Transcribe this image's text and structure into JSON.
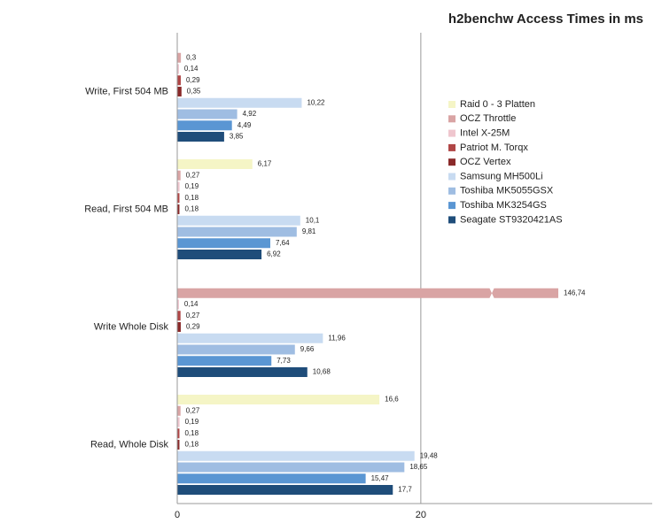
{
  "chart_data": {
    "type": "hbar",
    "title": "h2benchw Access Times in ms",
    "categories": [
      "Write, First 504 MB",
      "Read, First 504 MB",
      "Write Whole Disk",
      "Read, Whole Disk"
    ],
    "xlim": [
      0,
      39
    ],
    "xticks": [
      0,
      20
    ],
    "grid": true,
    "legend": "right",
    "series": [
      {
        "name": "Raid 0 - 3 Platten",
        "color": "#f5f5c6",
        "values": [
          null,
          6.17,
          null,
          16.6
        ],
        "value_labels": [
          null,
          "6,17",
          null,
          "16,6"
        ]
      },
      {
        "name": "OCZ Throttle",
        "color": "#d9a4a4",
        "values": [
          0.3,
          0.27,
          146.74,
          0.27
        ],
        "value_labels": [
          "0,3",
          "0,27",
          "146,74",
          "0,27"
        ]
      },
      {
        "name": "Intel X-25M",
        "color": "#efc6ce",
        "values": [
          0.14,
          0.19,
          0.14,
          0.19
        ],
        "value_labels": [
          "0,14",
          "0,19",
          "0,14",
          "0,19"
        ]
      },
      {
        "name": "Patriot M. Torqx",
        "color": "#b04646",
        "values": [
          0.29,
          0.18,
          0.27,
          0.18
        ],
        "value_labels": [
          "0,29",
          "0,18",
          "0,27",
          "0,18"
        ]
      },
      {
        "name": "OCZ Vertex",
        "color": "#8a2a2a",
        "values": [
          0.35,
          0.18,
          0.29,
          0.18
        ],
        "value_labels": [
          "0,35",
          "0,18",
          "0,29",
          "0,18"
        ]
      },
      {
        "name": "Samsung MH500Li",
        "color": "#c8dbf1",
        "values": [
          10.22,
          10.1,
          11.96,
          19.48
        ],
        "value_labels": [
          "10,22",
          "10,1",
          "11,96",
          "19,48"
        ]
      },
      {
        "name": "Toshiba MK5055GSX",
        "color": "#9fbde2",
        "values": [
          4.92,
          9.81,
          9.66,
          18.65
        ],
        "value_labels": [
          "4,92",
          "9,81",
          "9,66",
          "18,65"
        ]
      },
      {
        "name": "Toshiba MK3254GS",
        "color": "#5a96d3",
        "values": [
          4.49,
          7.64,
          7.73,
          15.47
        ],
        "value_labels": [
          "4,49",
          "7,64",
          "7,73",
          "15,47"
        ]
      },
      {
        "name": "Seagate ST9320421AS",
        "color": "#1f4d7a",
        "values": [
          3.85,
          6.92,
          10.68,
          17.7
        ],
        "value_labels": [
          "3,85",
          "6,92",
          "10,68",
          "17,7"
        ]
      }
    ]
  }
}
